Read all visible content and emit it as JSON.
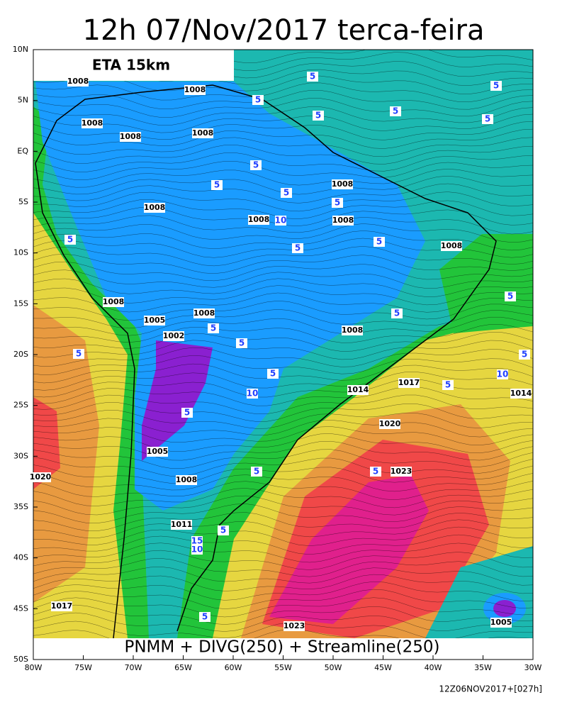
{
  "header": {
    "title": "12h 07/Nov/2017 terca-feira",
    "model": "ETA 15km"
  },
  "caption": "PNMM + DIVG(250) + Streamline(250)",
  "footer": "12Z06NOV2017+[027h]",
  "lat_labels": [
    "10N",
    "5N",
    "EQ",
    "5S",
    "10S",
    "15S",
    "20S",
    "25S",
    "30S",
    "35S",
    "40S",
    "45S",
    "50S"
  ],
  "lon_labels": [
    "80W",
    "75W",
    "70W",
    "65W",
    "60W",
    "55W",
    "50W",
    "45W",
    "40W",
    "35W",
    "30W"
  ],
  "contour_labels": [
    "1008",
    "1008",
    "1008",
    "1008",
    "1008",
    "1008",
    "1008",
    "1008",
    "1008",
    "1008",
    "1008",
    "1005",
    "1002",
    "1008",
    "1008",
    "1014",
    "1017",
    "1014",
    "1020",
    "1023",
    "1005",
    "1008",
    "1011",
    "1017",
    "1023",
    "1005",
    "1020"
  ],
  "divergence_labels": [
    "5",
    "5",
    "5",
    "5",
    "5",
    "5",
    "5",
    "5",
    "5",
    "5",
    "5",
    "5",
    "5",
    "5",
    "5",
    "5",
    "5",
    "5",
    "5",
    "5",
    "5",
    "5",
    "5",
    "5",
    "5",
    "5",
    "10",
    "10",
    "10",
    "10",
    "15"
  ]
}
